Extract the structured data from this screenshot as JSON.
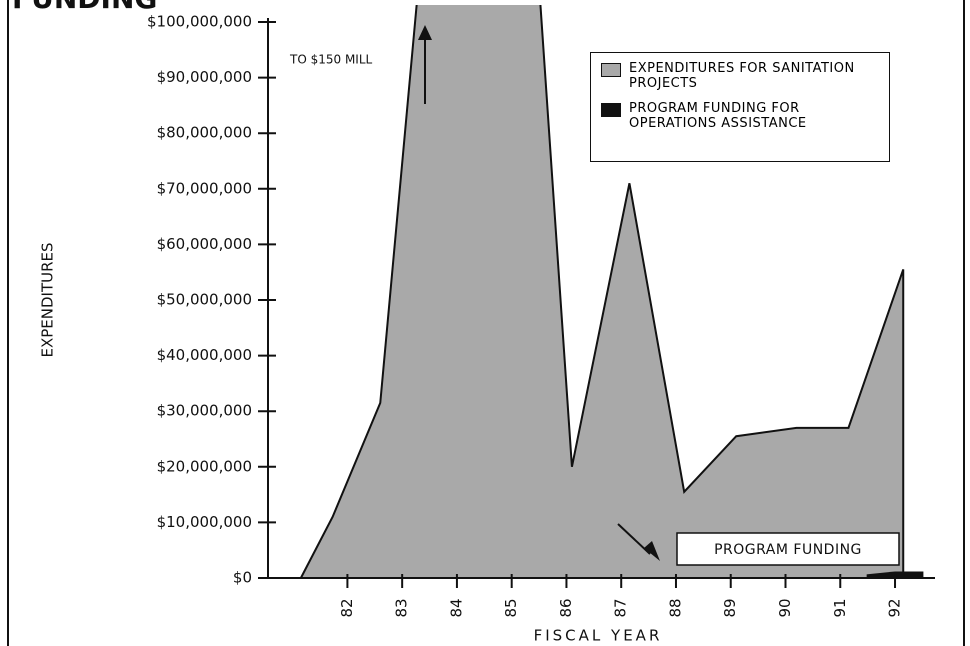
{
  "chart_data": {
    "type": "area",
    "title": "FUNDING",
    "ylabel": "EXPENDITURES",
    "xlabel": "FISCAL YEAR",
    "xlim": [
      80.55,
      92.73
    ],
    "xticks": [
      82,
      83,
      84,
      85,
      86,
      87,
      88,
      89,
      90,
      91,
      92
    ],
    "ylim": [
      0,
      100000000
    ],
    "yticks": [
      {
        "value": 0,
        "label": "$0"
      },
      {
        "value": 10000000,
        "label": "$10,000,000"
      },
      {
        "value": 20000000,
        "label": "$20,000,000"
      },
      {
        "value": 30000000,
        "label": "$30,000,000"
      },
      {
        "value": 40000000,
        "label": "$40,000,000"
      },
      {
        "value": 50000000,
        "label": "$50,000,000"
      },
      {
        "value": 60000000,
        "label": "$60,000,000"
      },
      {
        "value": 70000000,
        "label": "$70,000,000"
      },
      {
        "value": 80000000,
        "label": "$80,000,000"
      },
      {
        "value": 90000000,
        "label": "$90,000,000"
      },
      {
        "value": 100000000,
        "label": "$100,000,000"
      }
    ],
    "series": [
      {
        "name": "EXPENDITURES FOR SANITATION PROJECTS",
        "color": "#a9a9a9",
        "x": [
          81.15,
          81.73,
          82.6,
          83.7,
          85.2,
          86.1,
          87.15,
          88.15,
          89.1,
          90.2,
          91.15,
          92.15,
          92.15
        ],
        "values": [
          0,
          11000000,
          31500000,
          150000000,
          150000000,
          20000000,
          71000000,
          15500000,
          25500000,
          27000000,
          27000000,
          55500000,
          0
        ]
      },
      {
        "name": "PROGRAM FUNDING FOR OPERATIONS ASSISTANCE",
        "color": "#111111",
        "x": [
          91.5,
          92.0,
          92.5
        ],
        "values": [
          500000,
          1000000,
          1000000
        ]
      }
    ],
    "annotations": [
      "TO $150 MILL",
      "PROGRAM FUNDING"
    ]
  }
}
